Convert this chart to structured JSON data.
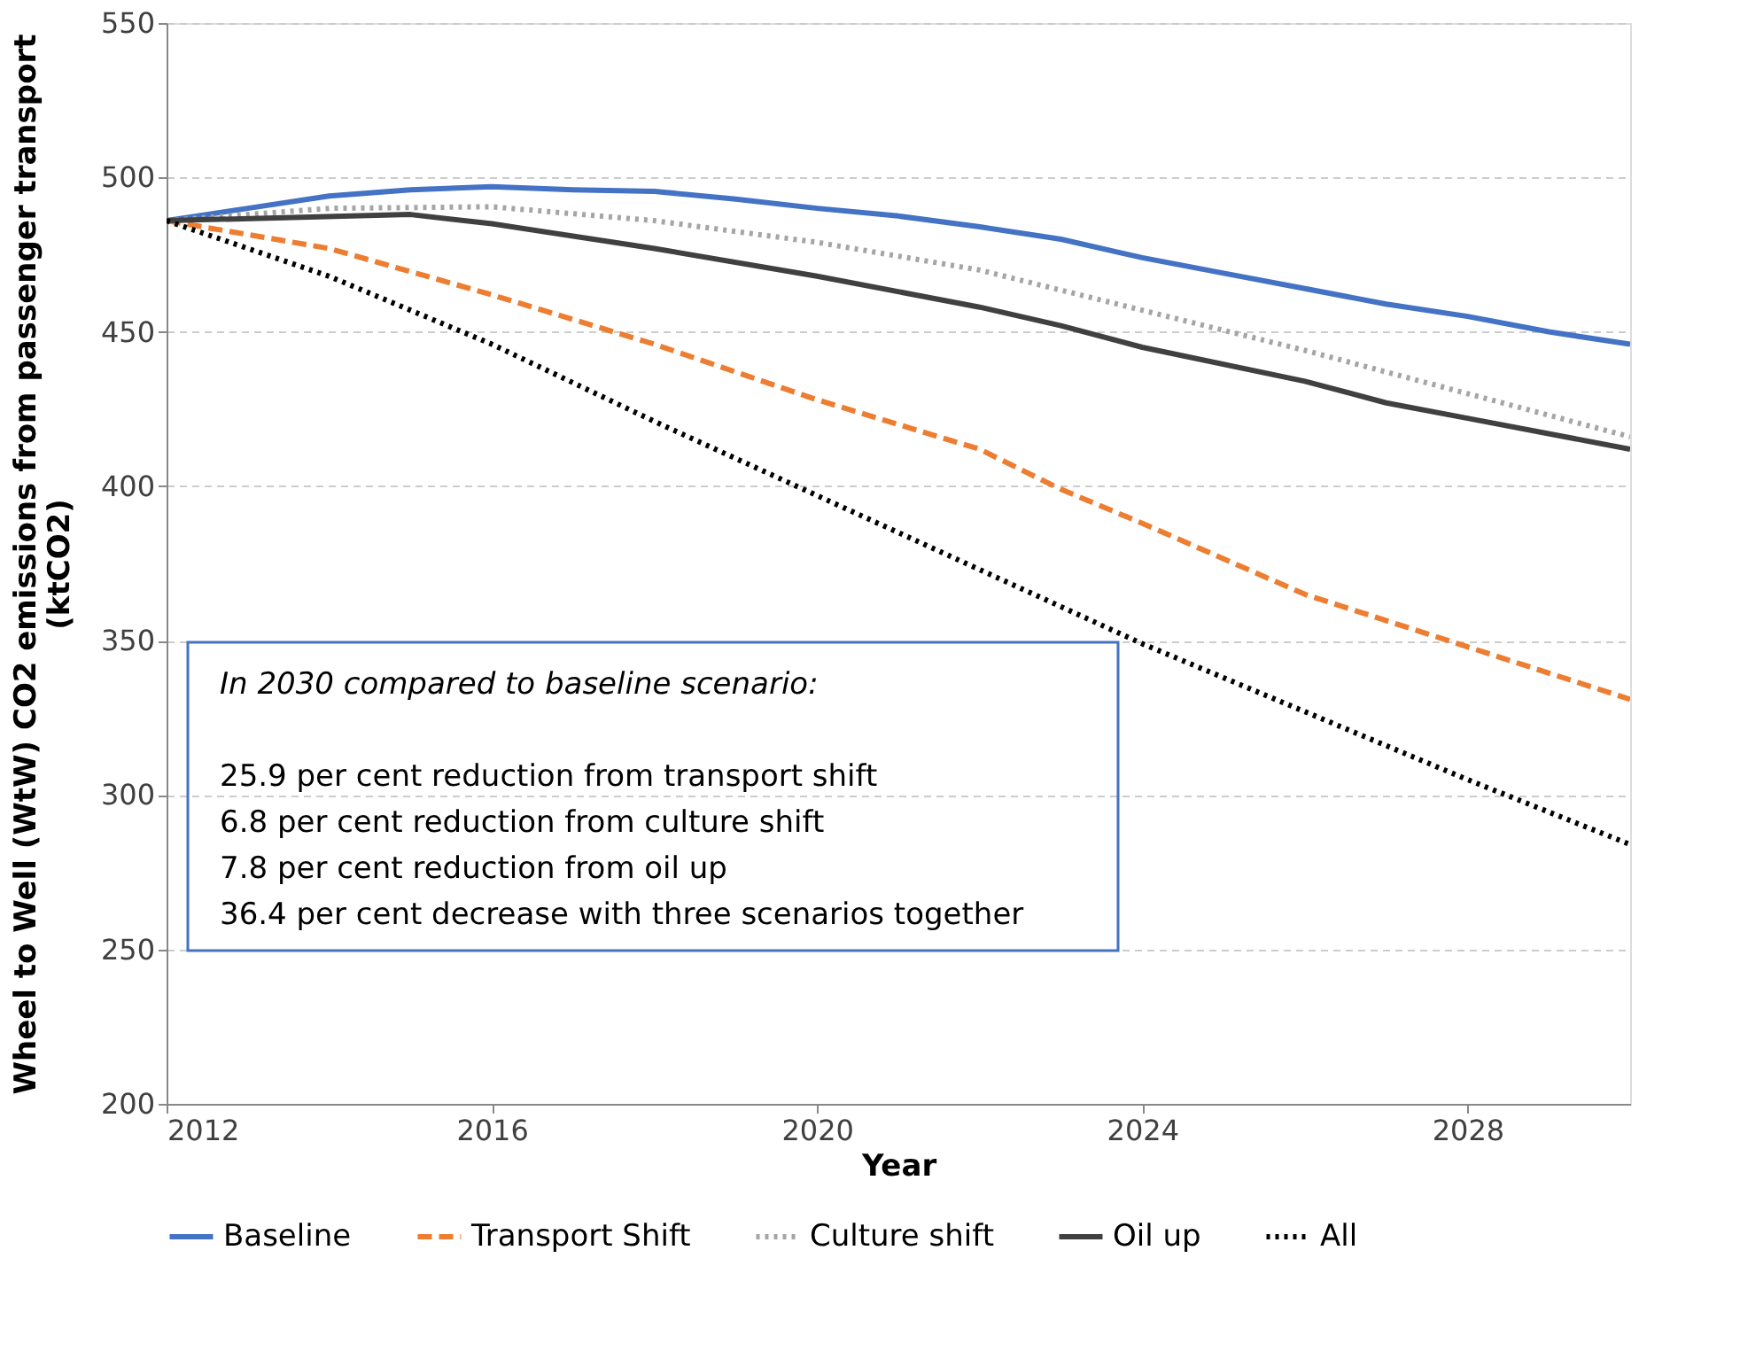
{
  "chart_data": {
    "type": "line",
    "xlabel": "Year",
    "ylabel": "Wheel to Well (WtW) CO2 emissions from passenger transport\n(ktCO2)",
    "x": [
      2012,
      2013,
      2014,
      2015,
      2016,
      2017,
      2018,
      2019,
      2020,
      2021,
      2022,
      2023,
      2024,
      2025,
      2026,
      2027,
      2028,
      2029,
      2030
    ],
    "series": [
      {
        "name": "Baseline",
        "color": "#4472c4",
        "line_style": "solid",
        "values": [
          486,
          490,
          494,
          496,
          497,
          496,
          495.5,
          493,
          490,
          487.5,
          484,
          480,
          474,
          469,
          464,
          459,
          455,
          450,
          446
        ]
      },
      {
        "name": "Transport Shift",
        "color": "#ed7d31",
        "line_style": "dashed",
        "x": [
          2012,
          2014,
          2016,
          2018,
          2020,
          2022,
          2023,
          2024,
          2026,
          2028,
          2030
        ],
        "values": [
          486,
          477,
          462,
          446,
          428,
          412,
          399,
          388,
          365,
          348,
          331
        ]
      },
      {
        "name": "Culture shift",
        "color": "#a5a5a5",
        "line_style": "dotted",
        "x": [
          2012,
          2014,
          2016,
          2018,
          2020,
          2022,
          2024,
          2026,
          2028,
          2030
        ],
        "values": [
          486,
          490,
          490.5,
          486,
          479,
          470,
          457,
          444,
          430,
          416
        ]
      },
      {
        "name": "Oil up",
        "color": "#404040",
        "line_style": "solid",
        "x": [
          2012,
          2015,
          2016,
          2018,
          2020,
          2022,
          2023,
          2024,
          2026,
          2027,
          2028,
          2030
        ],
        "values": [
          486,
          488,
          485,
          477,
          468,
          458,
          452,
          445,
          434,
          427,
          422,
          412
        ]
      },
      {
        "name": "All",
        "color": "#000000",
        "line_style": "dotted",
        "x": [
          2012,
          2014,
          2016,
          2018,
          2020,
          2022,
          2024,
          2026,
          2028,
          2030
        ],
        "values": [
          486,
          468,
          446,
          421,
          397,
          373,
          349,
          327,
          305,
          284
        ]
      }
    ],
    "xlim": [
      2012,
      2030
    ],
    "xticks": [
      2012,
      2016,
      2020,
      2024,
      2028
    ],
    "ylim": [
      200,
      550
    ],
    "yticks": [
      200,
      250,
      300,
      350,
      400,
      450,
      500,
      550
    ],
    "grid": "y",
    "legend": "bottom",
    "annotations": [
      "In 2030 compared to baseline scenario:",
      "25.9 per cent reduction from transport shift",
      "6.8 per cent reduction from culture shift",
      "7.8 per cent reduction from oil up",
      "36.4 per cent decrease with three scenarios together"
    ]
  }
}
